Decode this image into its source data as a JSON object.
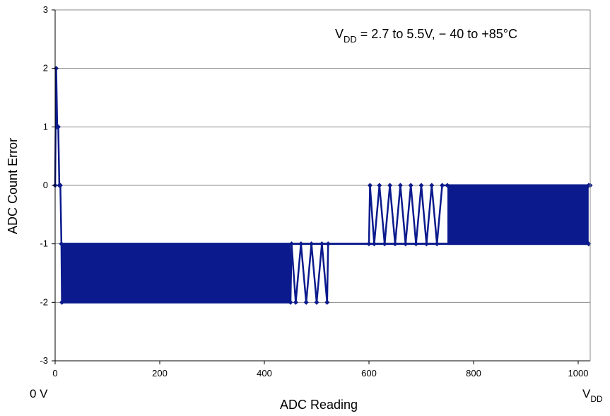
{
  "chart_data": {
    "type": "line",
    "title": "",
    "xlabel": "ADC Reading",
    "ylabel": "ADC Count Error",
    "xlim": [
      0,
      1023
    ],
    "ylim": [
      -3,
      3
    ],
    "x_ticks": [
      "0",
      "200",
      "400",
      "600",
      "800",
      "1000"
    ],
    "y_ticks": [
      "-3",
      "-2",
      "-1",
      "0",
      "1",
      "2",
      "3"
    ],
    "grid": "horizontal",
    "annotation": {
      "main": "V",
      "sub": "DD",
      "rest": " = 2.7 to 5.5V, − 40 to +85°C"
    },
    "left_end_label": "0 V",
    "right_end_label": {
      "main": "V",
      "sub": "DD"
    },
    "series_color": "#0b1a8c",
    "series": [
      {
        "values_description": "",
        "x": [
          0,
          2,
          4,
          6,
          8,
          10,
          12,
          13,
          450,
          452,
          460,
          470,
          480,
          490,
          500,
          510,
          520,
          522,
          600,
          602,
          610,
          620,
          630,
          640,
          650,
          660,
          670,
          680,
          690,
          700,
          710,
          720,
          730,
          740,
          750,
          1023
        ],
        "y": [
          0,
          2,
          1,
          1,
          0,
          0,
          -1,
          -2,
          -2,
          -1,
          -2,
          -1,
          -2,
          -1,
          -2,
          -1,
          -2,
          -1,
          -1,
          0,
          -1,
          0,
          -1,
          0,
          -1,
          0,
          -1,
          0,
          -1,
          0,
          -1,
          0,
          -1,
          0,
          0,
          0
        ],
        "bands": [
          {
            "x_start": 13,
            "x_end": 450,
            "y_low": -2,
            "y_high": -1
          },
          {
            "x_start": 750,
            "x_end": 1020,
            "y_low": -1,
            "y_high": 0
          }
        ]
      }
    ]
  }
}
